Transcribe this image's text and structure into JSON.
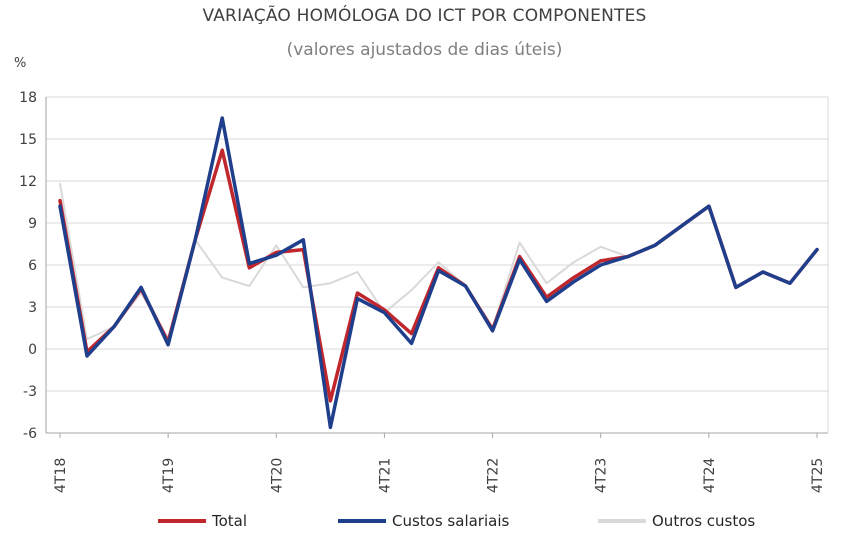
{
  "chart_data": {
    "type": "line",
    "title": "VARIAÇÃO HOMÓLOGA DO ICT POR COMPONENTES",
    "subtitle": "(valores ajustados de dias úteis)",
    "ylabel": "%",
    "ylim": [
      -6,
      18
    ],
    "yticks": [
      "18",
      "15",
      "12",
      "9",
      "6",
      "3",
      "0",
      "-3",
      "-6"
    ],
    "grid": true,
    "legend_position": "bottom",
    "x": [
      "4T18",
      "1T19",
      "2T19",
      "3T19",
      "4T19",
      "1T20",
      "2T20",
      "3T20",
      "4T20",
      "1T21",
      "2T21",
      "3T21",
      "4T21",
      "1T22",
      "2T22",
      "3T22",
      "4T22",
      "1T23",
      "2T23",
      "3T23",
      "4T23",
      "1T24",
      "2T24",
      "3T24",
      "4T24",
      "1T25",
      "2T25",
      "3T25",
      "4T25"
    ],
    "xtick_labels": [
      "4T18",
      "4T19",
      "4T20",
      "4T21",
      "4T22",
      "4T23",
      "4T24",
      "4T25"
    ],
    "series": [
      {
        "name": "Outros custos",
        "color": "#d9d9d9",
        "values": [
          11.8,
          0.7,
          1.6,
          4.0,
          0.8,
          7.8,
          5.1,
          4.5,
          7.4,
          4.4,
          4.7,
          5.5,
          2.6,
          4.2,
          6.2,
          4.5,
          1.5,
          7.6,
          4.7,
          6.2,
          7.3,
          6.6,
          7.4,
          8.8,
          10.2,
          4.4,
          5.5,
          4.7,
          7.1
        ]
      },
      {
        "name": "Total",
        "color": "#c0272d",
        "values": [
          10.6,
          -0.2,
          1.6,
          4.3,
          0.5,
          7.8,
          14.2,
          5.8,
          6.9,
          7.1,
          -3.7,
          4.0,
          2.8,
          1.1,
          5.8,
          4.5,
          1.4,
          6.6,
          3.7,
          5.1,
          6.3,
          6.6,
          7.4,
          8.8,
          10.2,
          4.4,
          5.5,
          4.7,
          7.1
        ]
      },
      {
        "name": "Custos salariais",
        "color": "#1f3e8c",
        "values": [
          10.2,
          -0.5,
          1.6,
          4.4,
          0.3,
          7.8,
          16.5,
          6.1,
          6.7,
          7.8,
          -5.6,
          3.6,
          2.6,
          0.4,
          5.6,
          4.5,
          1.3,
          6.4,
          3.4,
          4.8,
          6.0,
          6.6,
          7.4,
          8.8,
          10.2,
          4.4,
          5.5,
          4.7,
          7.1
        ]
      }
    ]
  },
  "legend": [
    {
      "label": "Total",
      "color": "#c0272d"
    },
    {
      "label": "Custos salariais",
      "color": "#1f3e8c"
    },
    {
      "label": "Outros custos",
      "color": "#d9d9d9"
    }
  ]
}
